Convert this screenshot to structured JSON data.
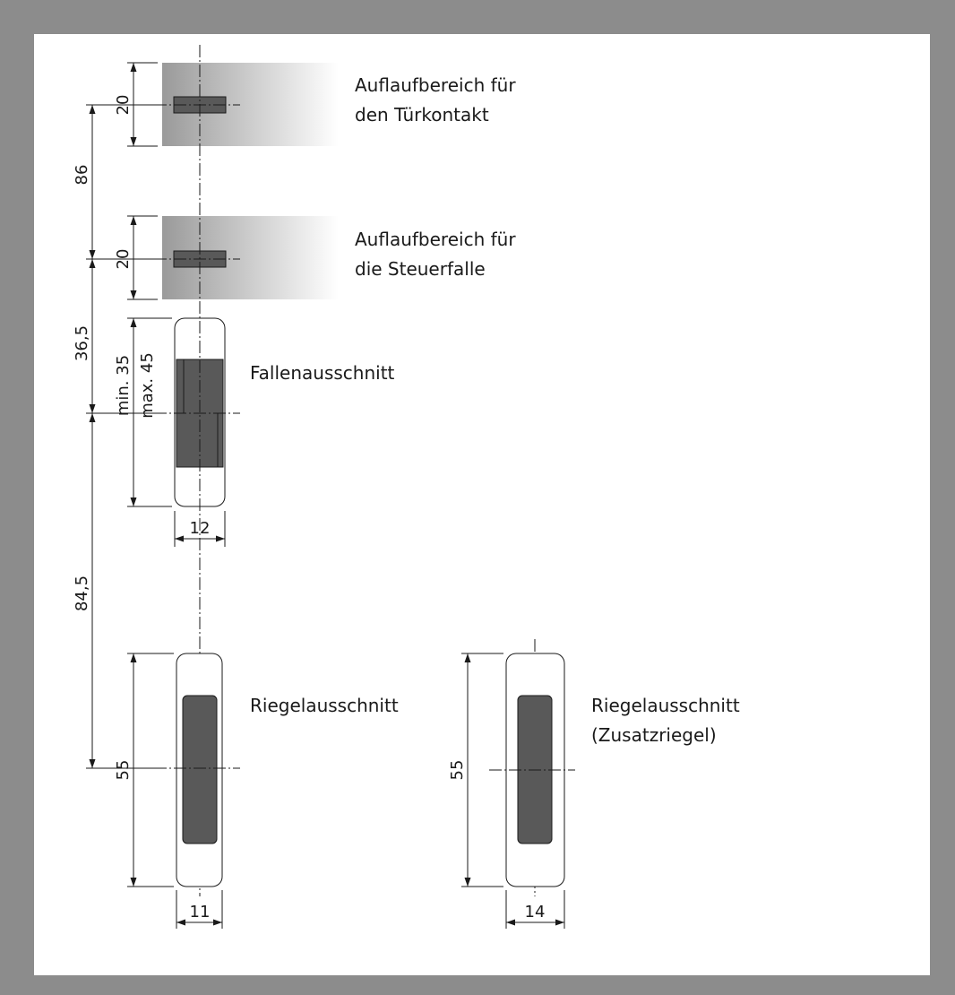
{
  "labels": {
    "tuerkontakt_line1": "Auflaufbereich für",
    "tuerkontakt_line2": "den Türkontakt",
    "steuerfalle_line1": "Auflaufbereich für",
    "steuerfalle_line2": "die Steuerfalle",
    "fallenausschnitt": "Fallenausschnitt",
    "riegelausschnitt": "Riegelausschnitt",
    "zusatzriegel_line1": "Riegelausschnitt",
    "zusatzriegel_line2": "(Zusatzriegel)"
  },
  "dimensions": {
    "tuerkontakt_height": "20",
    "steuerfalle_height": "20",
    "spacing_86": "86",
    "spacing_36_5": "36,5",
    "falle_min": "min. 35",
    "falle_max": "max. 45",
    "falle_width": "12",
    "spacing_84_5": "84,5",
    "riegel_height": "55",
    "riegel_width": "11",
    "zusatz_height": "55",
    "zusatz_width": "14"
  },
  "colors": {
    "frame": "#8c8c8c",
    "cutout_fill": "#595959",
    "zone_gradient_start": "#9a9a9a",
    "zone_gradient_end": "#ffffff"
  }
}
